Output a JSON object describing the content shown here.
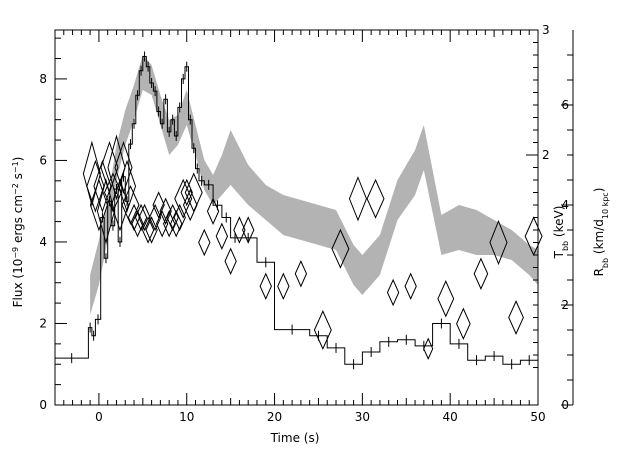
{
  "chart_data": {
    "type": "line",
    "xlabel": "Time (s)",
    "ylabel_left_parts": [
      "Flux (10",
      "−9",
      " ergs cm",
      "−2",
      " s",
      "−1",
      ")"
    ],
    "ylabel_right_inner_parts": [
      "T",
      "bb",
      " (keV)"
    ],
    "ylabel_right_outer_parts": [
      "R",
      "bb",
      " (km/d",
      "10 kpc",
      ")"
    ],
    "xlim": [
      -5,
      50
    ],
    "ylim_flux": [
      0,
      9.2
    ],
    "ylim_temp": [
      0,
      3.0
    ],
    "ylim_radius": [
      0,
      7.5
    ],
    "x_ticks": [
      0,
      10,
      20,
      30,
      40,
      50
    ],
    "x_tick_labels": [
      "0",
      "10",
      "20",
      "30",
      "40",
      "50"
    ],
    "flux_ticks": [
      0,
      2,
      4,
      6,
      8
    ],
    "flux_tick_labels": [
      "0",
      "2",
      "4",
      "6",
      "8"
    ],
    "temp_ticks": [
      2,
      3
    ],
    "temp_tick_labels": [
      "2",
      "3"
    ],
    "radius_ticks": [
      0,
      2,
      4,
      6
    ],
    "radius_tick_labels": [
      "0",
      "2",
      "4",
      "6"
    ],
    "series": [
      {
        "role": "flux-histogram",
        "axis": "flux",
        "color": "#000000",
        "steps": [
          [
            -5,
            -1.2,
            1.15
          ],
          [
            -1.2,
            -0.8,
            1.9
          ],
          [
            -0.8,
            -0.4,
            1.7
          ],
          [
            -0.4,
            0.2,
            2.1
          ],
          [
            0.2,
            0.6,
            4.6
          ],
          [
            0.6,
            1.0,
            3.6
          ],
          [
            1.0,
            1.4,
            5.0
          ],
          [
            1.4,
            1.8,
            4.4
          ],
          [
            1.8,
            2.2,
            5.3
          ],
          [
            2.2,
            2.6,
            4.0
          ],
          [
            2.6,
            3.0,
            5.6
          ],
          [
            3.0,
            3.4,
            5.0
          ],
          [
            3.4,
            3.8,
            6.4
          ],
          [
            3.8,
            4.2,
            6.9
          ],
          [
            4.2,
            4.6,
            7.6
          ],
          [
            4.6,
            5.0,
            8.2
          ],
          [
            5.0,
            5.4,
            8.55
          ],
          [
            5.4,
            5.8,
            8.3
          ],
          [
            5.8,
            6.2,
            7.9
          ],
          [
            6.2,
            6.6,
            7.7
          ],
          [
            6.6,
            7.0,
            7.2
          ],
          [
            7.0,
            7.4,
            6.9
          ],
          [
            7.4,
            7.8,
            7.5
          ],
          [
            7.8,
            8.2,
            6.7
          ],
          [
            8.2,
            8.6,
            7.0
          ],
          [
            8.6,
            9.0,
            6.6
          ],
          [
            9.0,
            9.4,
            7.3
          ],
          [
            9.4,
            9.8,
            8.0
          ],
          [
            9.8,
            10.2,
            8.3
          ],
          [
            10.2,
            10.6,
            7.0
          ],
          [
            10.6,
            11.0,
            6.3
          ],
          [
            11.0,
            11.4,
            5.8
          ],
          [
            11.4,
            12.0,
            5.5
          ],
          [
            12.0,
            13.0,
            5.4
          ],
          [
            13.0,
            14.0,
            4.9
          ],
          [
            14.0,
            15.0,
            4.6
          ],
          [
            15.0,
            16.0,
            4.1
          ],
          [
            16.0,
            18.0,
            4.1
          ],
          [
            18.0,
            20.0,
            3.5
          ],
          [
            20.0,
            24.0,
            1.85
          ],
          [
            24.0,
            26.0,
            1.7
          ],
          [
            26.0,
            28.0,
            1.4
          ],
          [
            28.0,
            30.0,
            1.0
          ],
          [
            30.0,
            32.0,
            1.3
          ],
          [
            32.0,
            34.0,
            1.55
          ],
          [
            34.0,
            36.0,
            1.6
          ],
          [
            36.0,
            38.0,
            1.45
          ],
          [
            38.0,
            40.0,
            2.0
          ],
          [
            40.0,
            42.0,
            1.5
          ],
          [
            42.0,
            44.0,
            1.1
          ],
          [
            44.0,
            46.0,
            1.2
          ],
          [
            46.0,
            48.0,
            1.0
          ],
          [
            48.0,
            50.0,
            1.1
          ]
        ]
      },
      {
        "role": "radius-band",
        "axis": "radius",
        "color": "#b3b3b3",
        "x": [
          -1,
          0,
          1,
          2,
          3,
          4,
          5,
          6,
          7,
          8,
          9,
          10,
          11,
          12,
          13,
          14,
          15,
          17,
          19,
          21,
          23,
          25,
          27,
          29,
          30,
          31,
          32,
          34,
          36,
          37,
          39,
          41,
          43,
          45,
          47,
          49,
          50
        ],
        "low": [
          1.8,
          2.4,
          3.3,
          4.5,
          5.2,
          5.7,
          6.3,
          6.2,
          5.6,
          5.0,
          5.2,
          5.6,
          5.0,
          4.3,
          4.0,
          4.2,
          4.4,
          4.0,
          3.7,
          3.4,
          3.3,
          3.2,
          3.1,
          2.4,
          2.2,
          2.4,
          2.6,
          3.7,
          4.2,
          4.7,
          3.0,
          3.1,
          3.0,
          3.0,
          2.9,
          2.6,
          2.4
        ],
        "high": [
          2.6,
          3.3,
          4.1,
          5.2,
          5.9,
          6.4,
          7.0,
          6.8,
          6.2,
          5.7,
          5.8,
          6.3,
          5.6,
          4.9,
          4.6,
          5.0,
          5.5,
          4.8,
          4.4,
          4.2,
          4.1,
          4.0,
          3.9,
          3.2,
          3.0,
          3.2,
          3.4,
          4.5,
          5.1,
          5.6,
          3.8,
          4.0,
          3.9,
          3.7,
          3.5,
          3.2,
          3.1
        ]
      },
      {
        "role": "temperature-diamonds",
        "axis": "temp",
        "color": "#000000",
        "points": [
          [
            -0.8,
            1.85,
            0.25
          ],
          [
            -0.4,
            1.75,
            0.2
          ],
          [
            0.0,
            1.6,
            0.2
          ],
          [
            0.4,
            1.75,
            0.2
          ],
          [
            0.8,
            1.55,
            0.25
          ],
          [
            1.2,
            1.9,
            0.2
          ],
          [
            1.6,
            1.7,
            0.15
          ],
          [
            2.0,
            1.9,
            0.25
          ],
          [
            2.4,
            1.6,
            0.2
          ],
          [
            2.8,
            1.9,
            0.2
          ],
          [
            3.2,
            1.75,
            0.2
          ],
          [
            3.6,
            1.6,
            0.15
          ],
          [
            4.0,
            1.5,
            0.1
          ],
          [
            4.4,
            1.45,
            0.1
          ],
          [
            4.8,
            1.5,
            0.1
          ],
          [
            5.2,
            1.5,
            0.1
          ],
          [
            5.6,
            1.4,
            0.1
          ],
          [
            6.0,
            1.4,
            0.1
          ],
          [
            6.4,
            1.5,
            0.1
          ],
          [
            6.8,
            1.6,
            0.1
          ],
          [
            7.2,
            1.45,
            0.1
          ],
          [
            7.6,
            1.55,
            0.1
          ],
          [
            8.0,
            1.45,
            0.1
          ],
          [
            8.4,
            1.5,
            0.1
          ],
          [
            8.8,
            1.45,
            0.1
          ],
          [
            9.2,
            1.5,
            0.1
          ],
          [
            9.6,
            1.65,
            0.15
          ],
          [
            10.0,
            1.7,
            0.1
          ],
          [
            10.4,
            1.6,
            0.12
          ],
          [
            10.8,
            1.7,
            0.15
          ],
          [
            12.0,
            1.3,
            0.1
          ],
          [
            13.0,
            1.55,
            0.1
          ],
          [
            14.0,
            1.35,
            0.1
          ],
          [
            15.0,
            1.15,
            0.1
          ],
          [
            16.0,
            1.4,
            0.1
          ],
          [
            17.0,
            1.4,
            0.1
          ],
          [
            19.0,
            0.95,
            0.1
          ],
          [
            21.0,
            0.95,
            0.1
          ],
          [
            23.0,
            1.05,
            0.1
          ],
          [
            25.5,
            0.6,
            0.15
          ],
          [
            27.5,
            1.25,
            0.15
          ],
          [
            29.5,
            1.65,
            0.17
          ],
          [
            31.5,
            1.65,
            0.15
          ],
          [
            33.5,
            0.9,
            0.1
          ],
          [
            35.5,
            0.95,
            0.1
          ],
          [
            37.5,
            0.45,
            0.08
          ],
          [
            39.5,
            0.85,
            0.14
          ],
          [
            41.5,
            0.65,
            0.12
          ],
          [
            43.5,
            1.05,
            0.12
          ],
          [
            45.5,
            1.3,
            0.17
          ],
          [
            47.5,
            0.7,
            0.13
          ],
          [
            49.5,
            1.35,
            0.15
          ]
        ]
      }
    ]
  }
}
